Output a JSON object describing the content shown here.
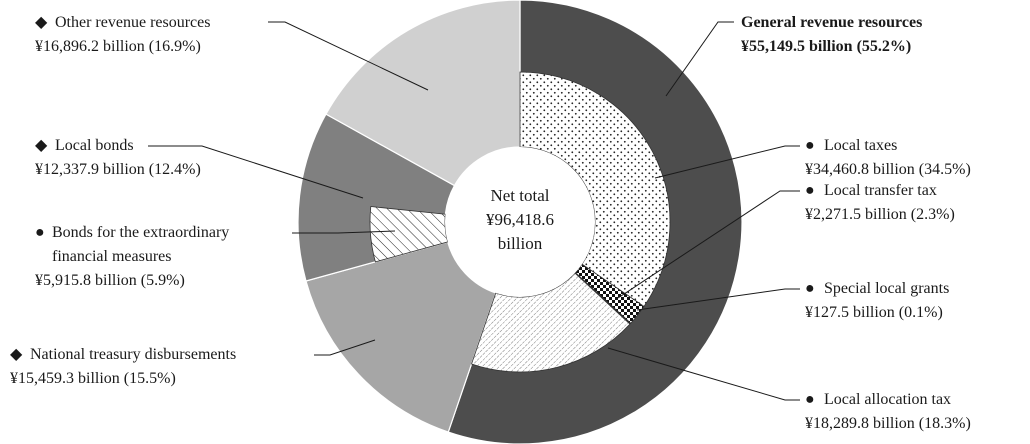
{
  "chart_data": {
    "type": "pie",
    "net_total": {
      "line1": "Net total",
      "line2": "¥96,418.6",
      "line3": "billion"
    },
    "outer_ring": [
      {
        "key": "general",
        "name": "General revenue resources",
        "value_text": "¥55,149.5 billion (55.2%)",
        "value": 55149.5,
        "share": 55.2,
        "color": "#4d4d4d",
        "marker": ""
      },
      {
        "key": "treasury",
        "name": "National treasury disbursements",
        "value_text": "¥15,459.3 billion (15.5%)",
        "value": 15459.3,
        "share": 15.5,
        "color": "#a6a6a6",
        "marker": "◆"
      },
      {
        "key": "bonds",
        "name": "Local bonds",
        "value_text": "¥12,337.9 billion (12.4%)",
        "value": 12337.9,
        "share": 12.4,
        "color": "#808080",
        "marker": "◆"
      },
      {
        "key": "other",
        "name": "Other revenue resources",
        "value_text": "¥16,896.2 billion (16.9%)",
        "value": 16896.2,
        "share": 16.9,
        "color": "#d0d0d0",
        "marker": "◆"
      }
    ],
    "inner_general": [
      {
        "key": "taxes",
        "name": "Local taxes",
        "value_text": "¥34,460.8 billion (34.5%)",
        "value": 34460.8,
        "share": 34.5,
        "pattern": "dots",
        "marker": "●"
      },
      {
        "key": "transfer",
        "name": "Local transfer tax",
        "value_text": "¥2,271.5 billion  (2.3%)",
        "value": 2271.5,
        "share": 2.3,
        "pattern": "checker",
        "marker": "●"
      },
      {
        "key": "special",
        "name": "Special local grants",
        "value_text": "¥127.5 billion (0.1%)",
        "value": 127.5,
        "share": 0.1,
        "pattern": "solid",
        "marker": "●"
      },
      {
        "key": "allocation",
        "name": "Local allocation tax",
        "value_text": "¥18,289.8 billion (18.3%)",
        "value": 18289.8,
        "share": 18.3,
        "pattern": "diagonal-dense",
        "marker": "●"
      }
    ],
    "inner_bonds": [
      {
        "key": "extra",
        "name_line1": "Bonds for the extraordinary",
        "name_line2": "financial measures",
        "value_text": "¥5,915.8 billion (5.9%)",
        "value": 5915.8,
        "share": 5.9,
        "pattern": "hatch",
        "marker": "●"
      }
    ]
  }
}
